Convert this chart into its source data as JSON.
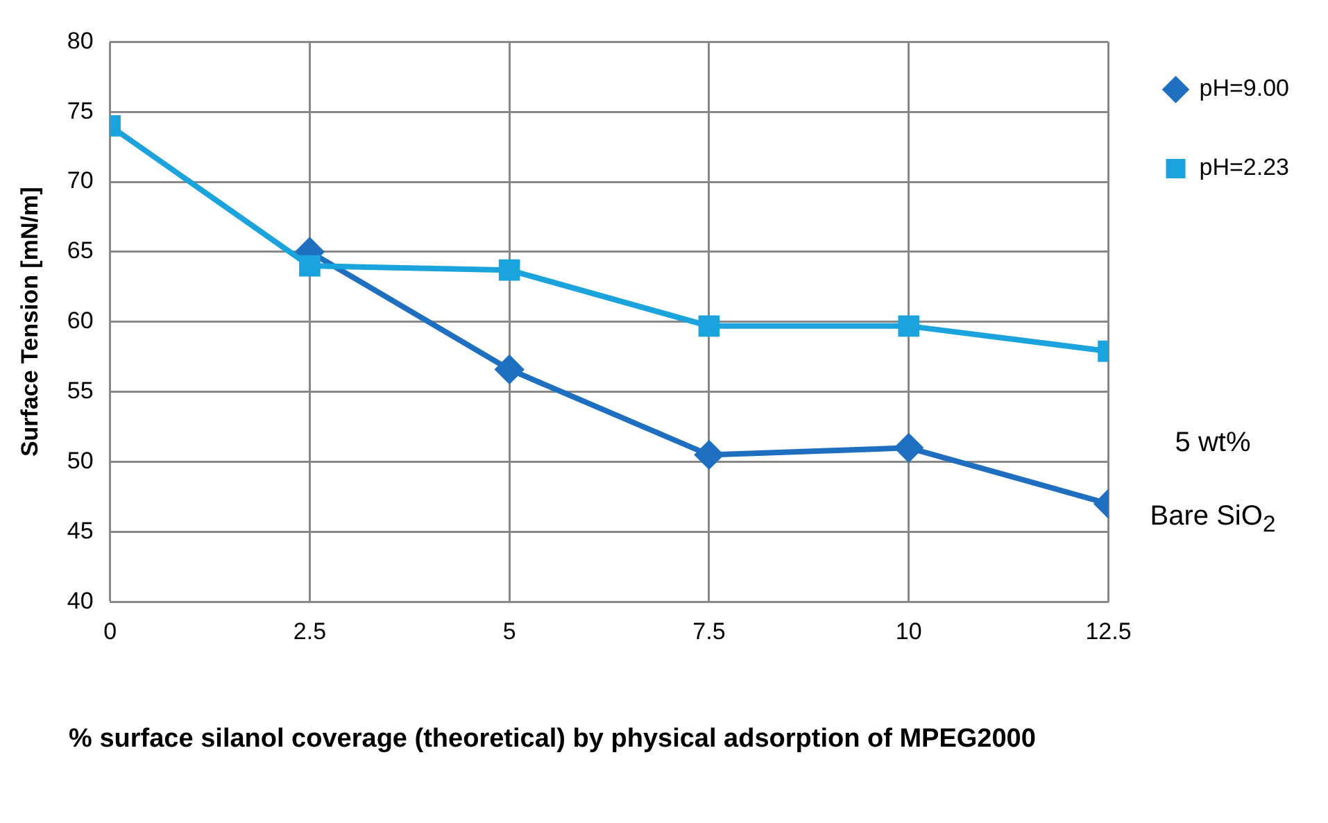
{
  "chart_data": {
    "type": "line",
    "xlabel": "% surface silanol coverage (theoretical) by physical adsorption of MPEG2000",
    "ylabel": "Surface Tension [mN/m]",
    "x": [
      0,
      2.5,
      5,
      7.5,
      10,
      12.5
    ],
    "series": [
      {
        "name": "pH=9.00",
        "color": "#1f6fc0",
        "marker": "diamond",
        "values": [
          null,
          65,
          56.6,
          50.5,
          51,
          47
        ]
      },
      {
        "name": "pH=2.23",
        "color": "#1aa3dc",
        "marker": "square",
        "values": [
          74,
          64,
          63.7,
          59.7,
          59.7,
          57.9
        ]
      }
    ],
    "xlim": [
      0,
      12.5
    ],
    "xticks": [
      0,
      2.5,
      5,
      7.5,
      10,
      12.5
    ],
    "ylim": [
      40,
      80
    ],
    "yticks": [
      40,
      45,
      50,
      55,
      60,
      65,
      70,
      75,
      80
    ],
    "grid": true,
    "legend": "right",
    "line_style": "solid",
    "annotations": [
      "5 wt%",
      "Bare SiO$_{2}$"
    ]
  }
}
